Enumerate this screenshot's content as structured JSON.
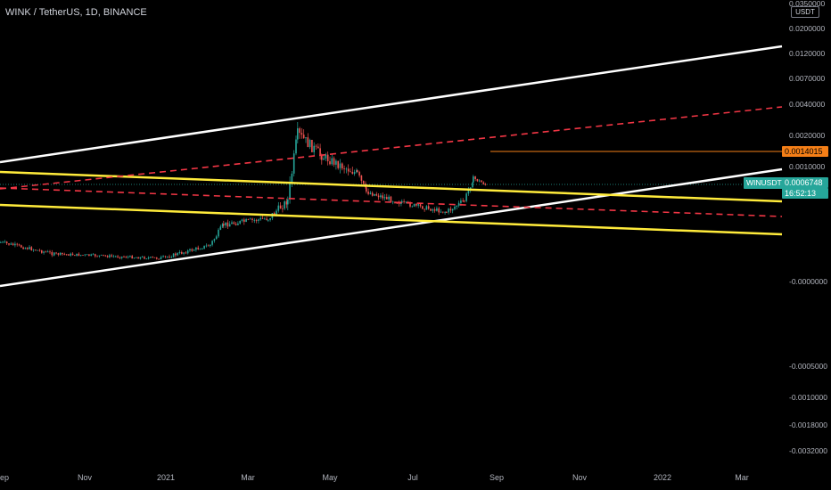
{
  "header": {
    "title": "WINK / TetherUS, 1D, BINANCE",
    "currency": "USDT"
  },
  "price_tags": {
    "alert_level": "0.0014015",
    "symbol": "WINUSDT",
    "last_price": "0.0006748",
    "countdown": "16:52:13"
  },
  "colors": {
    "background": "#000000",
    "up": "#26a69a",
    "down": "#ef5350",
    "trend_white": "#ffffff",
    "trend_yellow": "#ffeb3b",
    "trend_red_dashed": "#f23645",
    "alert": "#f57f17"
  },
  "chart_data": {
    "type": "candlestick",
    "title": "WINK / TetherUS, 1D, BINANCE",
    "price_scale": "USDT",
    "y_tick_labels": [
      "0.0350000",
      "0.0200000",
      "0.0120000",
      "0.0070000",
      "0.0040000",
      "0.0020000",
      "0.0010000",
      "-0.0000000",
      "-0.0005000",
      "-0.0010000",
      "-0.0018000",
      "-0.0032000"
    ],
    "x_tick_labels": [
      "Sep",
      "Nov",
      "2021",
      "Mar",
      "May",
      "Jul",
      "Sep",
      "Nov",
      "2022",
      "Mar"
    ],
    "last_price": 0.0006748,
    "alert_price": 0.0014015,
    "drawings": [
      {
        "kind": "trendline",
        "color": "white",
        "style": "solid"
      },
      {
        "kind": "trendline",
        "color": "white",
        "style": "solid"
      },
      {
        "kind": "trendline",
        "color": "yellow",
        "style": "solid"
      },
      {
        "kind": "trendline",
        "color": "yellow",
        "style": "solid"
      },
      {
        "kind": "trendline",
        "color": "red",
        "style": "dashed"
      },
      {
        "kind": "trendline",
        "color": "red",
        "style": "dashed"
      }
    ]
  }
}
